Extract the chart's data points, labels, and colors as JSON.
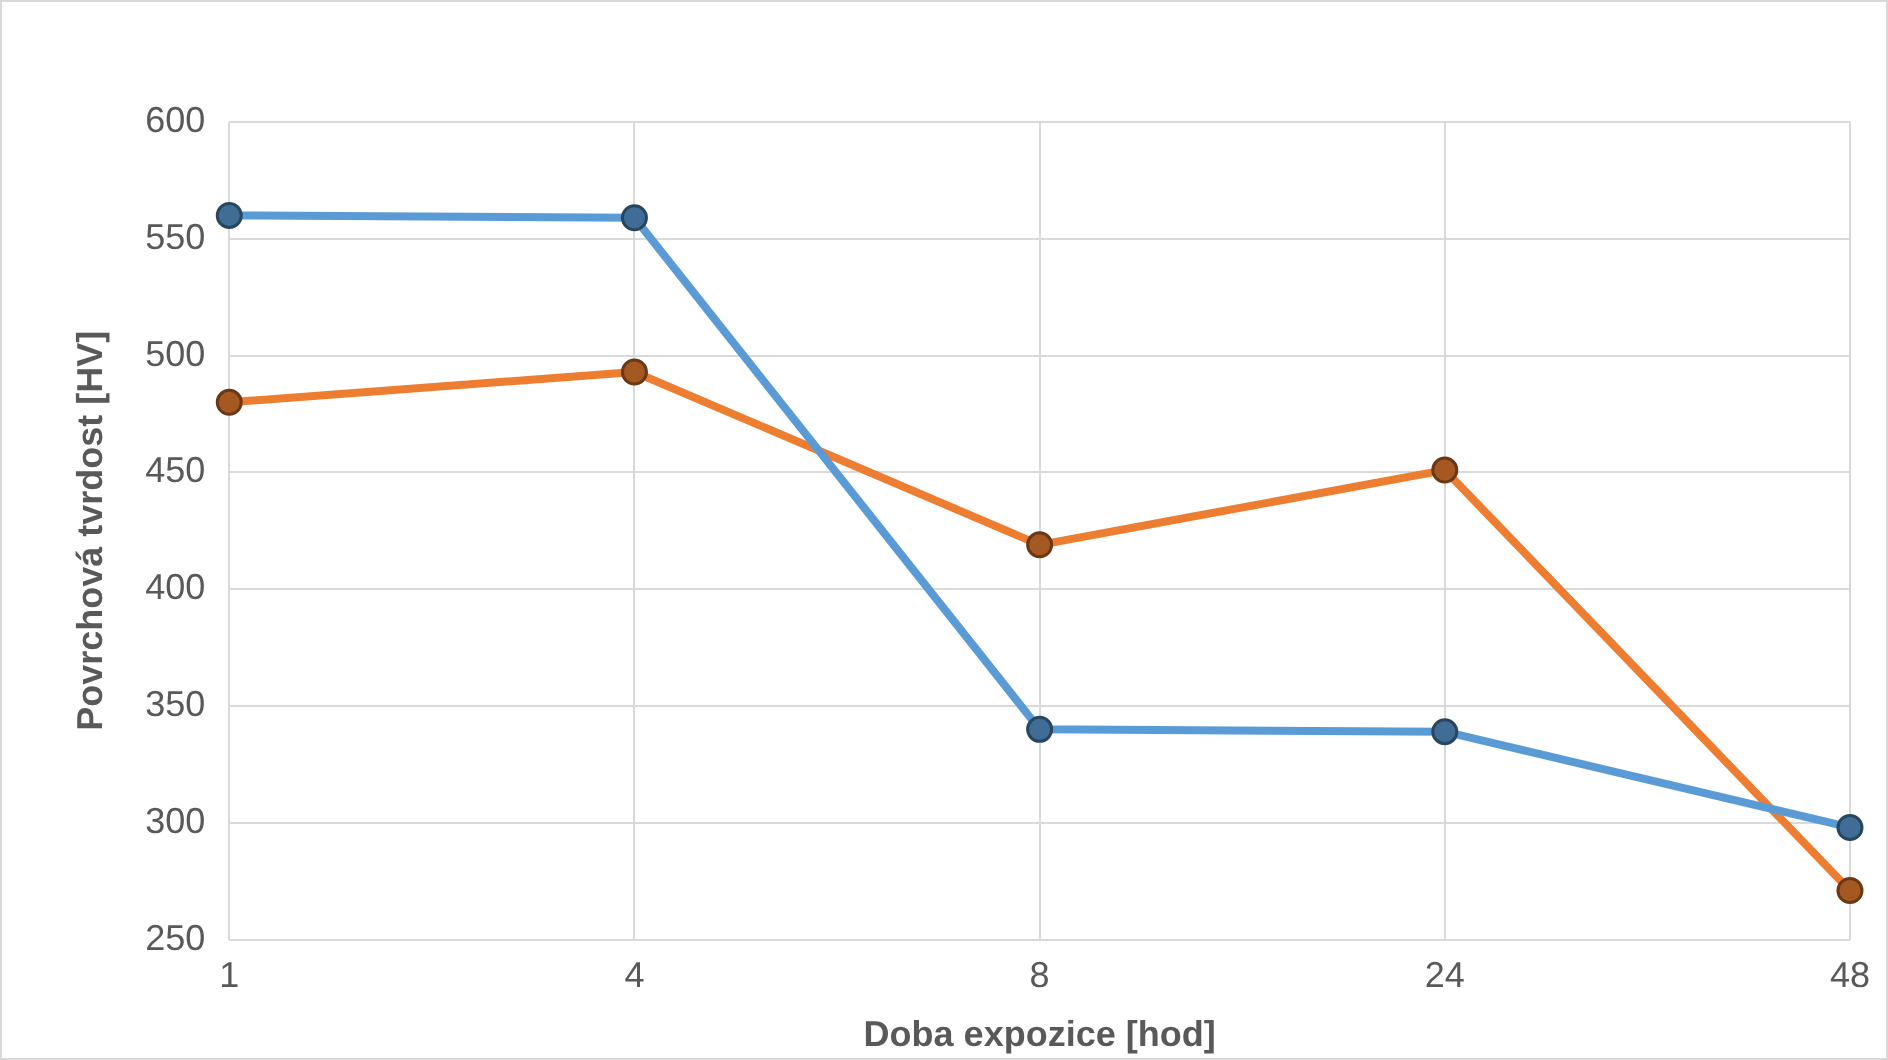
{
  "chart_data": {
    "type": "line",
    "xlabel": "Doba expozice [hod]",
    "ylabel": "Povrchová tvrdost [HV]",
    "categories": [
      "1",
      "4",
      "8",
      "24",
      "48"
    ],
    "series": [
      {
        "color": "#5b9bd5",
        "values": [
          560,
          559,
          340,
          339,
          298
        ]
      },
      {
        "color": "#ed7d31",
        "values": [
          480,
          493,
          419,
          451,
          271
        ]
      }
    ],
    "ylim": [
      250,
      600
    ],
    "yticks": [
      250,
      300,
      350,
      400,
      450,
      500,
      550,
      600
    ],
    "grid": true,
    "legend": false,
    "marker": "circle",
    "line_style": "solid"
  }
}
